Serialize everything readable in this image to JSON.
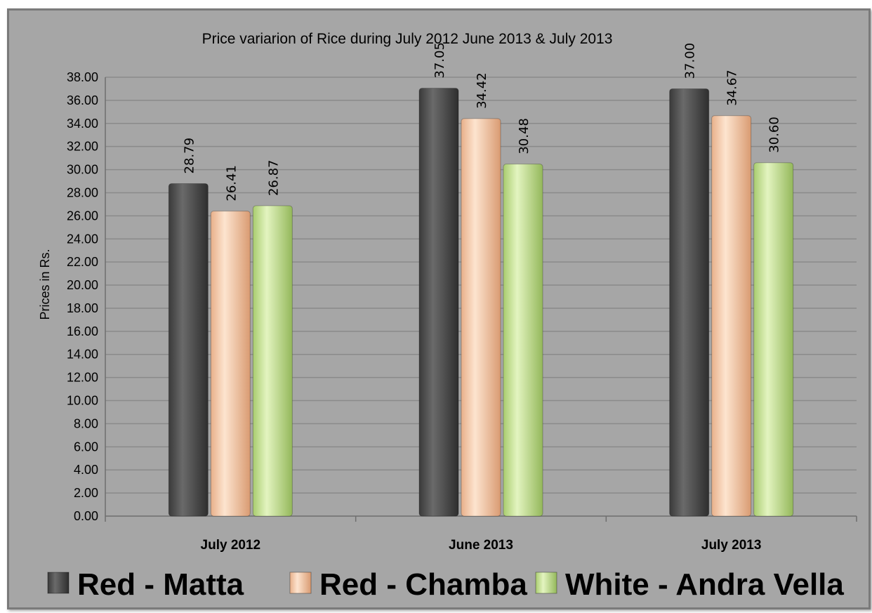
{
  "chart_data": {
    "type": "bar",
    "title": "Price variarion of Rice during July 2012 June 2013 & July 2013",
    "ylabel": "Prices in Rs.",
    "xlabel": "",
    "categories": [
      "July 2012",
      "June 2013",
      "July 2013"
    ],
    "series": [
      {
        "name": "Red - Matta",
        "values": [
          28.79,
          37.05,
          37.0
        ],
        "labels": [
          "28.79",
          "37.05",
          "37.00"
        ]
      },
      {
        "name": "Red - Chamba",
        "values": [
          26.41,
          34.42,
          34.67
        ],
        "labels": [
          "26.41",
          "34.42",
          "34.67"
        ]
      },
      {
        "name": "White - Andra Vella",
        "values": [
          26.87,
          30.48,
          30.6
        ],
        "labels": [
          "26.87",
          "30.48",
          "30.60"
        ]
      }
    ],
    "ylim": [
      0,
      38
    ],
    "ytick_step": 2,
    "ytick_labels": [
      "0.00",
      "2.00",
      "4.00",
      "6.00",
      "8.00",
      "10.00",
      "12.00",
      "14.00",
      "16.00",
      "18.00",
      "20.00",
      "22.00",
      "24.00",
      "26.00",
      "28.00",
      "30.00",
      "32.00",
      "34.00",
      "36.00",
      "38.00"
    ],
    "grid": true,
    "legend_position": "bottom",
    "colors": {
      "Red - Matta": "#4d4d4d",
      "Red - Chamba": "#f6c9a4",
      "White - Andra Vella": "#c4e08f",
      "background": "#a6a6a6",
      "gridline": "#8a8a8a"
    }
  }
}
